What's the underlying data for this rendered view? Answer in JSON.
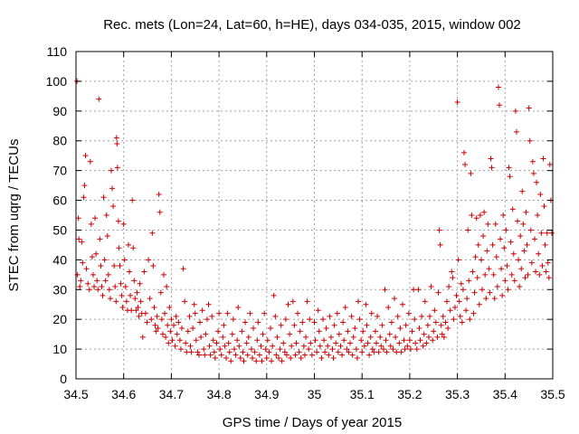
{
  "chart_data": {
    "type": "scatter",
    "title": "Rec. mets (Lon=24, Lat=60, h=HE), days 034-035, 2015, window 002",
    "xlabel": "GPS time / Days of year 2015",
    "ylabel": "STEC from uqrg / TECUs",
    "xlim": [
      34.5,
      35.5
    ],
    "ylim": [
      0,
      110
    ],
    "xticks": [
      "34.5",
      "34.6",
      "34.7",
      "34.8",
      "34.9",
      "35",
      "35.1",
      "35.2",
      "35.3",
      "35.4",
      "35.5"
    ],
    "yticks": [
      "0",
      "10",
      "20",
      "30",
      "40",
      "50",
      "60",
      "70",
      "80",
      "90",
      "100",
      "110"
    ],
    "grid": true,
    "marker": "plus",
    "color": "#cc0000",
    "points": [
      [
        34.502,
        100
      ],
      [
        34.503,
        35
      ],
      [
        34.505,
        54
      ],
      [
        34.506,
        47
      ],
      [
        34.508,
        31
      ],
      [
        34.51,
        33
      ],
      [
        34.512,
        46
      ],
      [
        34.514,
        39
      ],
      [
        34.516,
        61
      ],
      [
        34.518,
        65
      ],
      [
        34.52,
        75
      ],
      [
        34.522,
        37
      ],
      [
        34.525,
        32
      ],
      [
        34.528,
        30
      ],
      [
        34.53,
        73
      ],
      [
        34.532,
        52
      ],
      [
        34.534,
        41
      ],
      [
        34.536,
        35
      ],
      [
        34.538,
        31
      ],
      [
        34.54,
        54
      ],
      [
        34.542,
        42
      ],
      [
        34.544,
        33
      ],
      [
        34.546,
        30
      ],
      [
        34.548,
        94
      ],
      [
        34.55,
        47
      ],
      [
        34.552,
        38
      ],
      [
        34.554,
        31
      ],
      [
        34.556,
        28
      ],
      [
        34.558,
        61
      ],
      [
        34.56,
        40
      ],
      [
        34.562,
        33
      ],
      [
        34.564,
        55
      ],
      [
        34.566,
        48
      ],
      [
        34.568,
        35
      ],
      [
        34.57,
        30
      ],
      [
        34.572,
        27
      ],
      [
        34.574,
        70
      ],
      [
        34.576,
        64
      ],
      [
        34.578,
        58
      ],
      [
        34.58,
        38
      ],
      [
        34.582,
        31
      ],
      [
        34.584,
        26
      ],
      [
        34.585,
        81
      ],
      [
        34.586,
        79
      ],
      [
        34.587,
        71
      ],
      [
        34.589,
        53
      ],
      [
        34.59,
        44
      ],
      [
        34.592,
        38
      ],
      [
        34.594,
        32
      ],
      [
        34.596,
        28
      ],
      [
        34.598,
        24
      ],
      [
        34.6,
        52
      ],
      [
        34.602,
        40
      ],
      [
        34.604,
        31
      ],
      [
        34.606,
        26
      ],
      [
        34.608,
        23
      ],
      [
        34.61,
        45
      ],
      [
        34.612,
        36
      ],
      [
        34.614,
        28
      ],
      [
        34.616,
        23
      ],
      [
        34.618,
        60
      ],
      [
        34.62,
        44
      ],
      [
        34.622,
        33
      ],
      [
        34.624,
        27
      ],
      [
        34.626,
        23
      ],
      [
        34.628,
        29
      ],
      [
        34.63,
        24
      ],
      [
        34.632,
        21
      ],
      [
        34.634,
        32
      ],
      [
        34.636,
        26
      ],
      [
        34.638,
        22
      ],
      [
        34.64,
        14
      ],
      [
        34.643,
        36
      ],
      [
        34.646,
        22
      ],
      [
        34.649,
        19
      ],
      [
        34.652,
        40
      ],
      [
        34.655,
        27
      ],
      [
        34.658,
        20
      ],
      [
        34.66,
        49
      ],
      [
        34.662,
        38
      ],
      [
        34.664,
        24
      ],
      [
        34.666,
        18
      ],
      [
        34.668,
        16
      ],
      [
        34.67,
        21
      ],
      [
        34.672,
        17
      ],
      [
        34.674,
        62
      ],
      [
        34.676,
        56
      ],
      [
        34.678,
        29
      ],
      [
        34.68,
        20
      ],
      [
        34.682,
        15
      ],
      [
        34.684,
        35
      ],
      [
        34.686,
        22
      ],
      [
        34.688,
        14
      ],
      [
        34.69,
        31
      ],
      [
        34.692,
        18
      ],
      [
        34.694,
        12
      ],
      [
        34.696,
        24
      ],
      [
        34.698,
        16
      ],
      [
        34.7,
        20
      ],
      [
        34.702,
        13
      ],
      [
        34.705,
        18
      ],
      [
        34.708,
        11
      ],
      [
        34.71,
        21
      ],
      [
        34.712,
        15
      ],
      [
        34.715,
        19
      ],
      [
        34.718,
        13
      ],
      [
        34.72,
        10
      ],
      [
        34.722,
        17
      ],
      [
        34.725,
        37
      ],
      [
        34.728,
        26
      ],
      [
        34.73,
        12
      ],
      [
        34.732,
        9
      ],
      [
        34.735,
        16
      ],
      [
        34.738,
        21
      ],
      [
        34.74,
        11
      ],
      [
        34.742,
        9
      ],
      [
        34.745,
        17
      ],
      [
        34.748,
        25
      ],
      [
        34.75,
        22
      ],
      [
        34.752,
        13
      ],
      [
        34.755,
        9
      ],
      [
        34.758,
        8
      ],
      [
        34.76,
        19
      ],
      [
        34.762,
        14
      ],
      [
        34.765,
        23
      ],
      [
        34.768,
        10
      ],
      [
        34.77,
        8
      ],
      [
        34.772,
        15
      ],
      [
        34.775,
        20
      ],
      [
        34.778,
        25
      ],
      [
        34.78,
        11
      ],
      [
        34.782,
        8
      ],
      [
        34.785,
        21
      ],
      [
        34.788,
        13
      ],
      [
        34.79,
        9
      ],
      [
        34.792,
        7
      ],
      [
        34.795,
        12
      ],
      [
        34.798,
        16
      ],
      [
        34.8,
        22
      ],
      [
        34.802,
        10
      ],
      [
        34.805,
        8
      ],
      [
        34.808,
        14
      ],
      [
        34.81,
        18
      ],
      [
        34.812,
        11
      ],
      [
        34.815,
        7
      ],
      [
        34.818,
        22
      ],
      [
        34.82,
        12
      ],
      [
        34.822,
        9
      ],
      [
        34.825,
        6
      ],
      [
        34.828,
        15
      ],
      [
        34.83,
        20
      ],
      [
        34.832,
        10
      ],
      [
        34.835,
        8
      ],
      [
        34.838,
        13
      ],
      [
        34.84,
        24
      ],
      [
        34.842,
        11
      ],
      [
        34.845,
        7
      ],
      [
        34.848,
        16
      ],
      [
        34.85,
        9
      ],
      [
        34.852,
        6
      ],
      [
        34.855,
        19
      ],
      [
        34.858,
        12
      ],
      [
        34.86,
        8
      ],
      [
        34.862,
        14
      ],
      [
        34.865,
        22
      ],
      [
        34.868,
        10
      ],
      [
        34.87,
        7
      ],
      [
        34.872,
        17
      ],
      [
        34.875,
        9
      ],
      [
        34.878,
        6
      ],
      [
        34.88,
        13
      ],
      [
        34.882,
        19
      ],
      [
        34.885,
        8
      ],
      [
        34.888,
        11
      ],
      [
        34.89,
        6
      ],
      [
        34.892,
        15
      ],
      [
        34.895,
        22
      ],
      [
        34.898,
        10
      ],
      [
        34.9,
        7
      ],
      [
        34.902,
        13
      ],
      [
        34.905,
        9
      ],
      [
        34.908,
        17
      ],
      [
        34.91,
        6
      ],
      [
        34.912,
        11
      ],
      [
        34.915,
        28
      ],
      [
        34.918,
        21
      ],
      [
        34.92,
        8
      ],
      [
        34.922,
        14
      ],
      [
        34.925,
        7
      ],
      [
        34.928,
        10
      ],
      [
        34.93,
        18
      ],
      [
        34.932,
        6
      ],
      [
        34.935,
        12
      ],
      [
        34.938,
        9
      ],
      [
        34.94,
        20
      ],
      [
        34.942,
        8
      ],
      [
        34.945,
        25
      ],
      [
        34.948,
        15
      ],
      [
        34.95,
        7
      ],
      [
        34.952,
        11
      ],
      [
        34.955,
        26
      ],
      [
        34.958,
        18
      ],
      [
        34.96,
        8
      ],
      [
        34.962,
        12
      ],
      [
        34.965,
        22
      ],
      [
        34.968,
        9
      ],
      [
        34.97,
        16
      ],
      [
        34.972,
        7
      ],
      [
        34.975,
        19
      ],
      [
        34.978,
        11
      ],
      [
        34.98,
        8
      ],
      [
        34.982,
        14
      ],
      [
        34.985,
        26
      ],
      [
        34.988,
        10
      ],
      [
        34.99,
        20
      ],
      [
        34.992,
        12
      ],
      [
        34.995,
        8
      ],
      [
        35,
        19
      ],
      [
        35.002,
        13
      ],
      [
        35.005,
        9
      ],
      [
        35.008,
        23
      ],
      [
        35.01,
        16
      ],
      [
        35.012,
        11
      ],
      [
        35.015,
        7
      ],
      [
        35.018,
        20
      ],
      [
        35.02,
        13
      ],
      [
        35.022,
        9
      ],
      [
        35.025,
        17
      ],
      [
        35.028,
        11
      ],
      [
        35.03,
        8
      ],
      [
        35.032,
        21
      ],
      [
        35.035,
        14
      ],
      [
        35.038,
        10
      ],
      [
        35.04,
        7
      ],
      [
        35.042,
        18
      ],
      [
        35.045,
        12
      ],
      [
        35.048,
        22
      ],
      [
        35.05,
        9
      ],
      [
        35.052,
        15
      ],
      [
        35.055,
        11
      ],
      [
        35.058,
        8
      ],
      [
        35.06,
        19
      ],
      [
        35.062,
        13
      ],
      [
        35.065,
        24
      ],
      [
        35.068,
        10
      ],
      [
        35.07,
        16
      ],
      [
        35.072,
        9
      ],
      [
        35.075,
        12
      ],
      [
        35.078,
        21
      ],
      [
        35.08,
        8
      ],
      [
        35.082,
        14
      ],
      [
        35.085,
        17
      ],
      [
        35.088,
        10
      ],
      [
        35.09,
        7
      ],
      [
        35.092,
        26
      ],
      [
        35.095,
        20
      ],
      [
        35.098,
        13
      ],
      [
        35.1,
        9
      ],
      [
        35.102,
        16
      ],
      [
        35.105,
        11
      ],
      [
        35.108,
        25
      ],
      [
        35.11,
        18
      ],
      [
        35.112,
        12
      ],
      [
        35.115,
        8
      ],
      [
        35.118,
        14
      ],
      [
        35.12,
        22
      ],
      [
        35.122,
        10
      ],
      [
        35.125,
        9
      ],
      [
        35.128,
        16
      ],
      [
        35.13,
        12
      ],
      [
        35.132,
        21
      ],
      [
        35.135,
        9
      ],
      [
        35.138,
        14
      ],
      [
        35.14,
        11
      ],
      [
        35.142,
        18
      ],
      [
        35.145,
        10
      ],
      [
        35.148,
        30
      ],
      [
        35.15,
        13
      ],
      [
        35.152,
        9
      ],
      [
        35.155,
        24
      ],
      [
        35.158,
        15
      ],
      [
        35.16,
        11
      ],
      [
        35.162,
        19
      ],
      [
        35.165,
        10
      ],
      [
        35.168,
        27
      ],
      [
        35.17,
        14
      ],
      [
        35.172,
        9
      ],
      [
        35.175,
        21
      ],
      [
        35.178,
        12
      ],
      [
        35.18,
        17
      ],
      [
        35.182,
        9
      ],
      [
        35.185,
        25
      ],
      [
        35.188,
        13
      ],
      [
        35.19,
        10
      ],
      [
        35.192,
        18
      ],
      [
        35.195,
        11
      ],
      [
        35.198,
        22
      ],
      [
        35.2,
        13
      ],
      [
        35.202,
        10
      ],
      [
        35.205,
        16
      ],
      [
        35.208,
        30
      ],
      [
        35.21,
        20
      ],
      [
        35.212,
        12
      ],
      [
        35.215,
        10
      ],
      [
        35.218,
        30
      ],
      [
        35.22,
        17
      ],
      [
        35.222,
        13
      ],
      [
        35.225,
        21
      ],
      [
        35.228,
        11
      ],
      [
        35.23,
        15
      ],
      [
        35.232,
        26
      ],
      [
        35.235,
        12
      ],
      [
        35.238,
        18
      ],
      [
        35.24,
        14
      ],
      [
        35.242,
        21
      ],
      [
        35.245,
        31
      ],
      [
        35.248,
        13
      ],
      [
        35.25,
        16
      ],
      [
        35.252,
        23
      ],
      [
        35.255,
        19
      ],
      [
        35.258,
        14
      ],
      [
        35.26,
        29
      ],
      [
        35.262,
        50
      ],
      [
        35.264,
        45
      ],
      [
        35.266,
        18
      ],
      [
        35.268,
        15
      ],
      [
        35.27,
        21
      ],
      [
        35.272,
        14
      ],
      [
        35.275,
        19
      ],
      [
        35.278,
        26
      ],
      [
        35.28,
        17
      ],
      [
        35.282,
        31
      ],
      [
        35.285,
        23
      ],
      [
        35.288,
        36
      ],
      [
        35.29,
        34
      ],
      [
        35.292,
        20
      ],
      [
        35.295,
        24
      ],
      [
        35.298,
        28
      ],
      [
        35.3,
        93
      ],
      [
        35.302,
        40
      ],
      [
        35.304,
        26
      ],
      [
        35.306,
        21
      ],
      [
        35.308,
        32
      ],
      [
        35.31,
        19
      ],
      [
        35.312,
        30
      ],
      [
        35.314,
        76
      ],
      [
        35.316,
        72
      ],
      [
        35.318,
        23
      ],
      [
        35.32,
        27
      ],
      [
        35.322,
        50
      ],
      [
        35.324,
        33
      ],
      [
        35.326,
        20
      ],
      [
        35.328,
        69
      ],
      [
        35.33,
        55
      ],
      [
        35.332,
        36
      ],
      [
        35.334,
        22
      ],
      [
        35.336,
        29
      ],
      [
        35.338,
        41
      ],
      [
        35.34,
        54
      ],
      [
        35.342,
        34
      ],
      [
        35.344,
        45
      ],
      [
        35.346,
        25
      ],
      [
        35.348,
        55
      ],
      [
        35.35,
        40
      ],
      [
        35.352,
        30
      ],
      [
        35.354,
        48
      ],
      [
        35.356,
        56
      ],
      [
        35.358,
        35
      ],
      [
        35.36,
        27
      ],
      [
        35.362,
        43
      ],
      [
        35.364,
        52
      ],
      [
        35.366,
        37
      ],
      [
        35.368,
        29
      ],
      [
        35.37,
        74
      ],
      [
        35.372,
        71
      ],
      [
        35.374,
        45
      ],
      [
        35.376,
        35
      ],
      [
        35.378,
        27
      ],
      [
        35.38,
        52
      ],
      [
        35.382,
        41
      ],
      [
        35.384,
        31
      ],
      [
        35.386,
        98
      ],
      [
        35.388,
        92
      ],
      [
        35.39,
        47
      ],
      [
        35.392,
        37
      ],
      [
        35.394,
        28
      ],
      [
        35.396,
        55
      ],
      [
        35.398,
        44
      ],
      [
        35.4,
        33
      ],
      [
        35.402,
        50
      ],
      [
        35.404,
        38
      ],
      [
        35.406,
        30
      ],
      [
        35.408,
        71
      ],
      [
        35.41,
        68
      ],
      [
        35.412,
        46
      ],
      [
        35.414,
        35
      ],
      [
        35.416,
        57
      ],
      [
        35.418,
        42
      ],
      [
        35.42,
        33
      ],
      [
        35.422,
        90
      ],
      [
        35.424,
        83
      ],
      [
        35.426,
        53
      ],
      [
        35.428,
        40
      ],
      [
        35.43,
        31
      ],
      [
        35.432,
        48
      ],
      [
        35.434,
        37
      ],
      [
        35.436,
        63
      ],
      [
        35.438,
        52
      ],
      [
        35.44,
        43
      ],
      [
        35.442,
        34
      ],
      [
        35.444,
        56
      ],
      [
        35.446,
        45
      ],
      [
        35.448,
        35
      ],
      [
        35.45,
        91
      ],
      [
        35.452,
        80
      ],
      [
        35.454,
        50
      ],
      [
        35.456,
        39
      ],
      [
        35.458,
        73
      ],
      [
        35.46,
        69
      ],
      [
        35.462,
        47
      ],
      [
        35.464,
        36
      ],
      [
        35.466,
        66
      ],
      [
        35.468,
        55
      ],
      [
        35.47,
        42
      ],
      [
        35.472,
        35
      ],
      [
        35.474,
        62
      ],
      [
        35.476,
        49
      ],
      [
        35.478,
        38
      ],
      [
        35.48,
        74
      ],
      [
        35.482,
        58
      ],
      [
        35.484,
        45
      ],
      [
        35.486,
        36
      ],
      [
        35.488,
        49
      ],
      [
        35.49,
        39
      ],
      [
        35.492,
        34
      ],
      [
        35.494,
        72
      ],
      [
        35.496,
        60
      ],
      [
        35.498,
        49
      ]
    ]
  }
}
